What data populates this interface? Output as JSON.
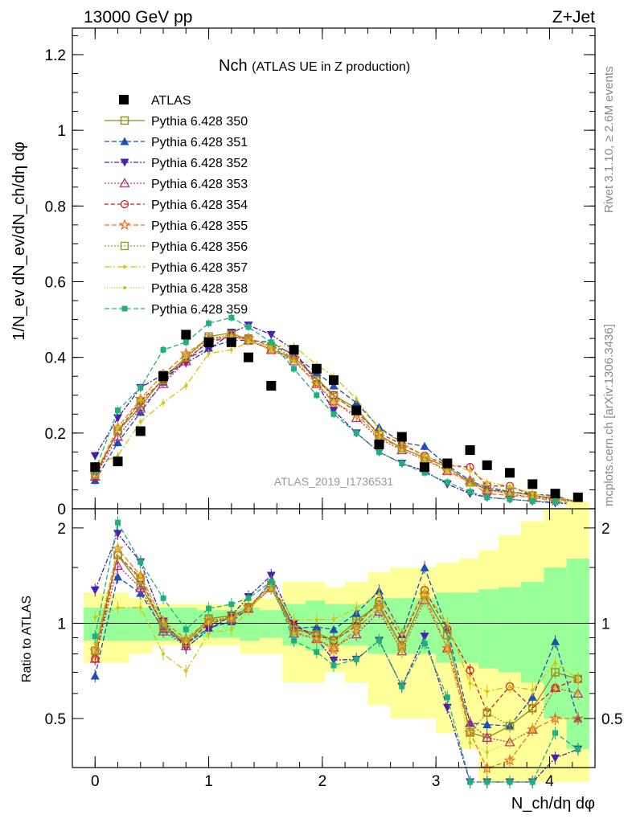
{
  "header": {
    "left": "13000 GeV pp",
    "right": "Z+Jet"
  },
  "side": {
    "rivet": "Rivet 3.1.10, ≥ 2.6M events",
    "mcplots": "mcplots.cern.ch [arXiv:1306.3436]"
  },
  "chart_data": {
    "type": "scatter",
    "title_main": "Nch",
    "title_sub": "(ATLAS UE in Z production)",
    "analysis_label": "ATLAS_2019_I1736531",
    "ylabel_main": "1/N_ev dN_ev/dN_ch/dη dφ",
    "ylabel_ratio": "Ratio to ATLAS",
    "xlabel": "N_ch/dη dφ",
    "xlim": [
      -0.2,
      4.4
    ],
    "ylim_main": [
      0,
      1.27
    ],
    "ylim_ratio": [
      0.35,
      2.3
    ],
    "xticks": [
      "0",
      "1",
      "2",
      "3",
      "4"
    ],
    "yticks_main": [
      "0",
      "0.2",
      "0.4",
      "0.6",
      "0.8",
      "1",
      "1.2"
    ],
    "yticks_ratio": [
      "0.5",
      "1",
      "2"
    ],
    "x": [
      0.0,
      0.2,
      0.4,
      0.6,
      0.8,
      1.0,
      1.2,
      1.35,
      1.55,
      1.75,
      1.95,
      2.1,
      2.3,
      2.5,
      2.7,
      2.9,
      3.1,
      3.3,
      3.45,
      3.65,
      3.85,
      4.05,
      4.25
    ],
    "data": {
      "name": "ATLAS",
      "values": [
        0.11,
        0.125,
        0.205,
        0.35,
        0.46,
        0.44,
        0.44,
        0.4,
        0.325,
        0.42,
        0.37,
        0.34,
        0.26,
        0.17,
        0.19,
        0.11,
        0.12,
        0.155,
        0.115,
        0.095,
        0.065,
        0.04,
        0.03
      ],
      "band_inner": [
        0.12,
        0.12,
        0.12,
        0.12,
        0.12,
        0.1,
        0.1,
        0.12,
        0.1,
        0.15,
        0.18,
        0.15,
        0.15,
        0.2,
        0.2,
        0.2,
        0.25,
        0.25,
        0.28,
        0.3,
        0.35,
        0.5,
        0.6
      ],
      "band_outer": [
        0.25,
        0.25,
        0.2,
        0.15,
        0.15,
        0.15,
        0.15,
        0.2,
        0.2,
        0.35,
        0.35,
        0.3,
        0.35,
        0.45,
        0.5,
        0.5,
        0.55,
        0.6,
        0.7,
        0.9,
        1.1,
        1.3,
        1.5
      ]
    },
    "series": [
      {
        "name": "Pythia 6.428 350",
        "color": "#8a8a1a",
        "marker": "square-open",
        "dash": "",
        "values": [
          0.09,
          0.205,
          0.27,
          0.345,
          0.4,
          0.455,
          0.465,
          0.445,
          0.42,
          0.4,
          0.345,
          0.3,
          0.265,
          0.195,
          0.16,
          0.135,
          0.11,
          0.07,
          0.05,
          0.045,
          0.035,
          0.028,
          0.02
        ]
      },
      {
        "name": "Pythia 6.428 351",
        "color": "#1f4fb0",
        "marker": "triangle-up",
        "dash": "6,3",
        "values": [
          0.075,
          0.175,
          0.255,
          0.335,
          0.395,
          0.425,
          0.445,
          0.445,
          0.44,
          0.405,
          0.36,
          0.325,
          0.28,
          0.215,
          0.175,
          0.165,
          0.115,
          0.075,
          0.055,
          0.045,
          0.038,
          0.035,
          0.015
        ]
      },
      {
        "name": "Pythia 6.428 352",
        "color": "#4a1fb0",
        "marker": "triangle-down",
        "dash": "6,2,2,2",
        "values": [
          0.14,
          0.24,
          0.32,
          0.355,
          0.385,
          0.42,
          0.465,
          0.485,
          0.46,
          0.42,
          0.33,
          0.26,
          0.2,
          0.15,
          0.12,
          0.1,
          0.065,
          0.04,
          0.03,
          0.025,
          0.02,
          0.015,
          0.012
        ]
      },
      {
        "name": "Pythia 6.428 353",
        "color": "#c0307a",
        "marker": "triangle-open",
        "dash": "2,2",
        "values": [
          0.085,
          0.19,
          0.265,
          0.33,
          0.39,
          0.445,
          0.455,
          0.445,
          0.42,
          0.39,
          0.33,
          0.285,
          0.24,
          0.185,
          0.155,
          0.13,
          0.1,
          0.075,
          0.05,
          0.04,
          0.03,
          0.025,
          0.018
        ]
      },
      {
        "name": "Pythia 6.428 354",
        "color": "#d81f1f",
        "marker": "circle-open",
        "dash": "5,3",
        "values": [
          0.085,
          0.205,
          0.285,
          0.34,
          0.395,
          0.44,
          0.455,
          0.45,
          0.43,
          0.41,
          0.34,
          0.3,
          0.255,
          0.2,
          0.17,
          0.14,
          0.115,
          0.11,
          0.06,
          0.06,
          0.035,
          0.025,
          0.02
        ]
      },
      {
        "name": "Pythia 6.428 355",
        "color": "#f07020",
        "marker": "star-open",
        "dash": "6,3",
        "values": [
          0.09,
          0.215,
          0.29,
          0.355,
          0.41,
          0.45,
          0.455,
          0.45,
          0.42,
          0.395,
          0.33,
          0.28,
          0.25,
          0.19,
          0.16,
          0.135,
          0.1,
          0.07,
          0.04,
          0.035,
          0.03,
          0.02,
          0.015
        ]
      },
      {
        "name": "Pythia 6.428 356",
        "color": "#9a9a22",
        "marker": "square-open",
        "dash": "2,2",
        "values": [
          0.09,
          0.205,
          0.28,
          0.34,
          0.4,
          0.45,
          0.46,
          0.45,
          0.43,
          0.4,
          0.34,
          0.295,
          0.26,
          0.195,
          0.16,
          0.135,
          0.11,
          0.07,
          0.06,
          0.045,
          0.035,
          0.028,
          0.02
        ]
      },
      {
        "name": "Pythia 6.428 357",
        "color": "#d8c010",
        "marker": "dot",
        "dash": "8,3,2,3",
        "values": [
          0.115,
          0.14,
          0.23,
          0.28,
          0.325,
          0.41,
          0.42,
          0.44,
          0.43,
          0.43,
          0.38,
          0.35,
          0.29,
          0.21,
          0.175,
          0.14,
          0.12,
          0.1,
          0.07,
          0.06,
          0.04,
          0.03,
          0.02
        ]
      },
      {
        "name": "Pythia 6.428 358",
        "color": "#c8c818",
        "marker": "dot",
        "dash": "1,2",
        "values": [
          0.095,
          0.215,
          0.29,
          0.355,
          0.4,
          0.445,
          0.455,
          0.445,
          0.42,
          0.39,
          0.33,
          0.285,
          0.245,
          0.19,
          0.155,
          0.13,
          0.1,
          0.065,
          0.045,
          0.04,
          0.03,
          0.025,
          0.018
        ]
      },
      {
        "name": "Pythia 6.428 359",
        "color": "#20b080",
        "marker": "square",
        "dash": "6,3",
        "values": [
          0.1,
          0.26,
          0.32,
          0.42,
          0.44,
          0.49,
          0.505,
          0.48,
          0.44,
          0.37,
          0.3,
          0.25,
          0.2,
          0.15,
          0.12,
          0.095,
          0.07,
          0.045,
          0.03,
          0.025,
          0.02,
          0.018,
          0.012
        ]
      }
    ]
  }
}
